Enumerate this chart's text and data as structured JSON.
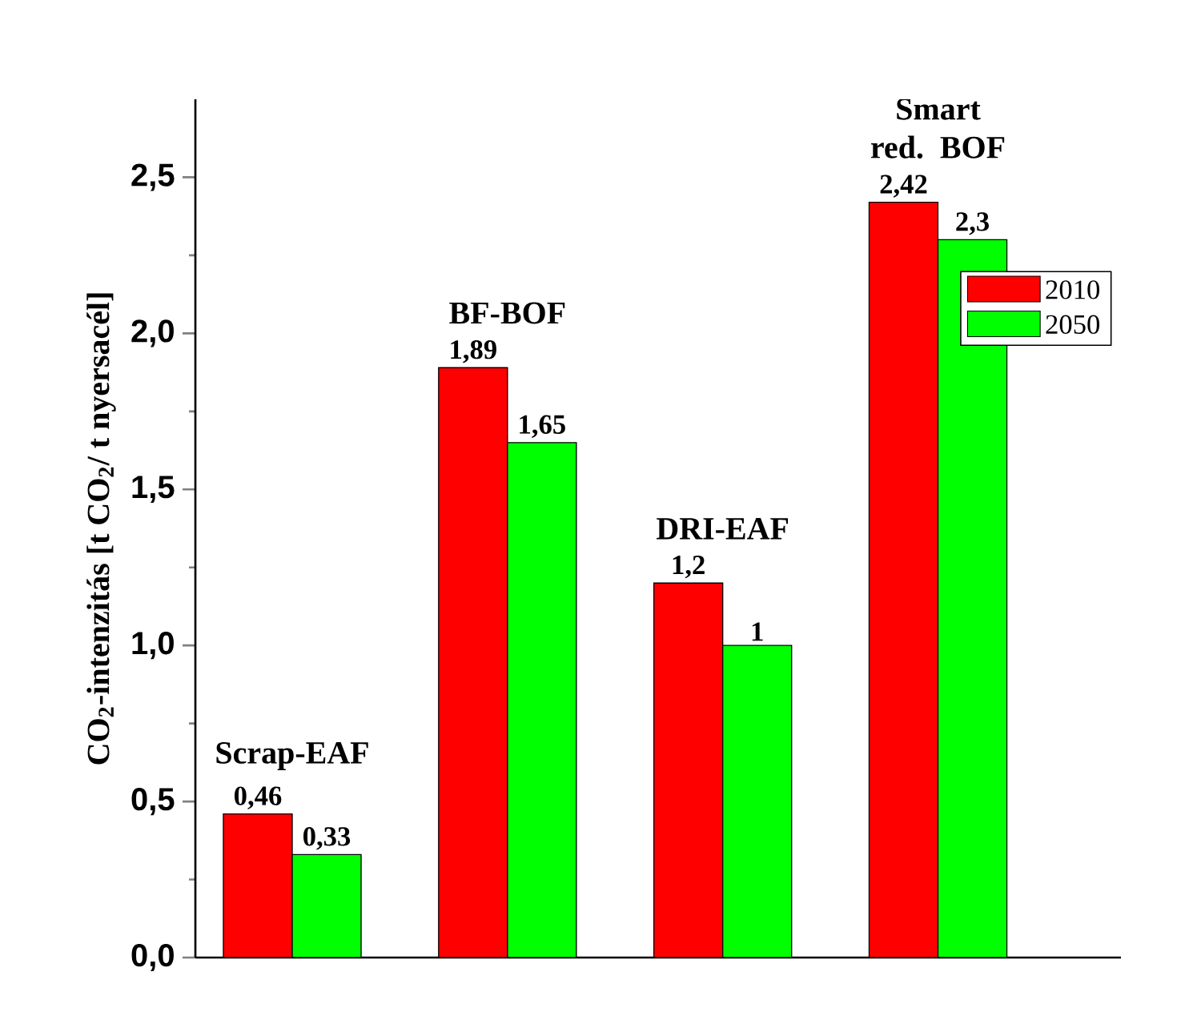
{
  "chart_data": {
    "type": "bar",
    "ylabel": "CO$_{2}$-intenzitás [t CO$_{2}$/ t nyersacél]",
    "categories": [
      "Scrap-EAF",
      "BF-BOF",
      "DRI-EAF",
      "Smart red. BOF"
    ],
    "series": [
      {
        "name": "2010",
        "color": "#ff0000",
        "values": [
          0.46,
          1.89,
          1.2,
          2.42
        ],
        "value_labels": [
          "0,46",
          "1,89",
          "1,2",
          "2,42"
        ]
      },
      {
        "name": "2050",
        "color": "#00ff00",
        "values": [
          0.33,
          1.65,
          1.0,
          2.3
        ],
        "value_labels": [
          "0,33",
          "1,65",
          "1",
          "2,3"
        ]
      }
    ],
    "ylim": [
      0,
      2.75
    ],
    "yticks": [
      {
        "value": 0,
        "label": "0,0"
      },
      {
        "value": 0.5,
        "label": "0,5"
      },
      {
        "value": 1.0,
        "label": "1,0"
      },
      {
        "value": 1.5,
        "label": "1,5"
      },
      {
        "value": 2.0,
        "label": "2,0"
      },
      {
        "value": 2.5,
        "label": "2,5"
      }
    ],
    "legend": "top right",
    "grid": false
  }
}
